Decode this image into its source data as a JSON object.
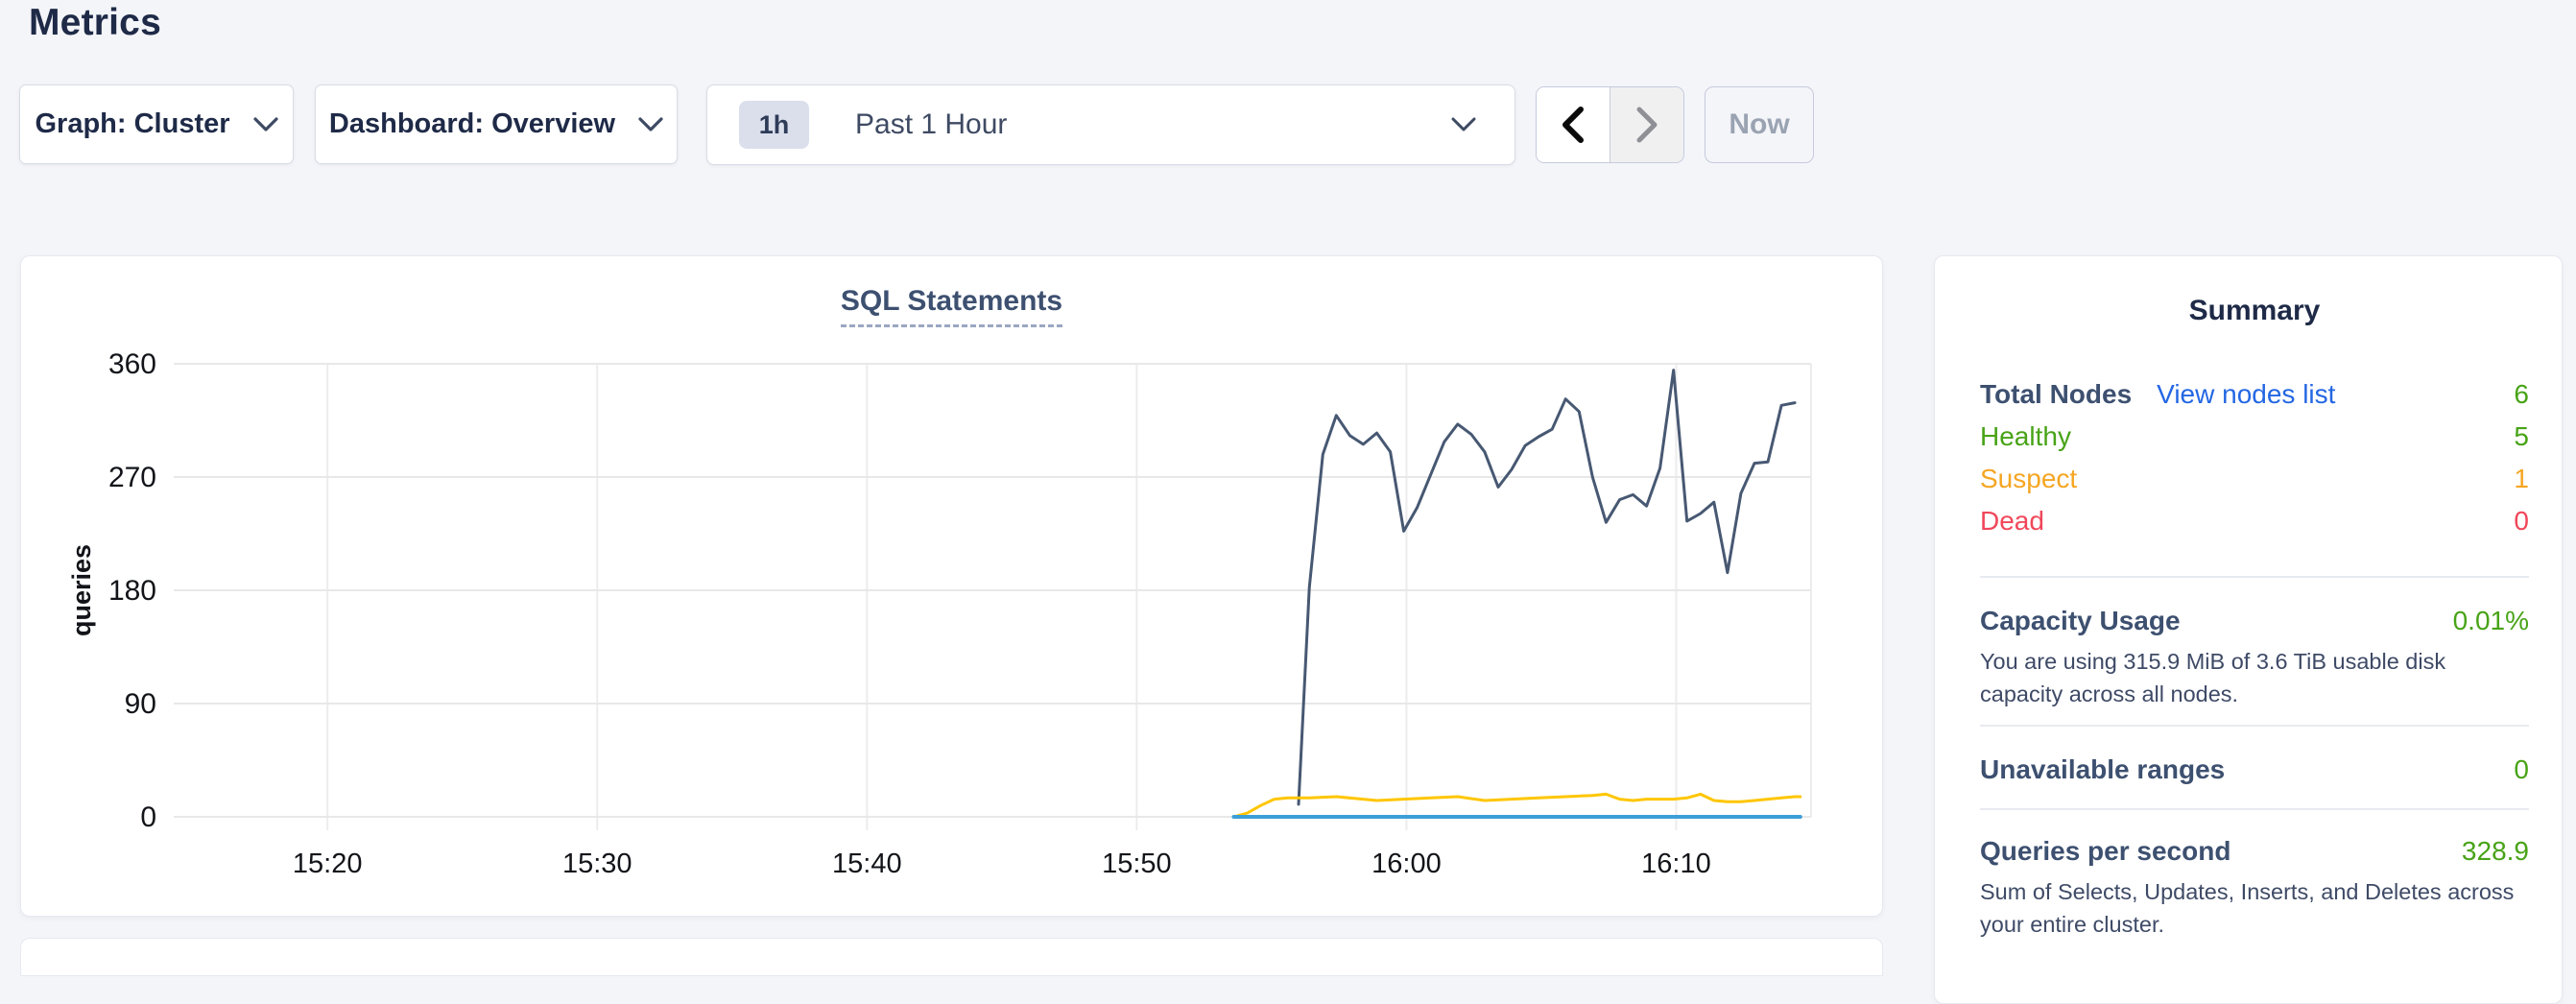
{
  "header": {
    "title": "Metrics"
  },
  "toolbar": {
    "graph_dropdown": {
      "label": "Graph: Cluster"
    },
    "dashboard_dropdown": {
      "label": "Dashboard: Overview"
    },
    "time_picker": {
      "badge": "1h",
      "label": "Past 1 Hour"
    },
    "prev_icon": "chevron-left",
    "next_icon": "chevron-right",
    "now_label": "Now"
  },
  "summary": {
    "title": "Summary",
    "total_nodes_label": "Total Nodes",
    "view_nodes_link": "View nodes list",
    "total_nodes_value": "6",
    "healthy_label": "Healthy",
    "healthy_value": "5",
    "suspect_label": "Suspect",
    "suspect_value": "1",
    "dead_label": "Dead",
    "dead_value": "0",
    "capacity_label": "Capacity Usage",
    "capacity_value": "0.01%",
    "capacity_desc": "You are using 315.9 MiB of 3.6 TiB usable disk capacity across all nodes.",
    "unavailable_label": "Unavailable ranges",
    "unavailable_value": "0",
    "qps_label": "Queries per second",
    "qps_value": "328.9",
    "qps_desc": "Sum of Selects, Updates, Inserts, and Deletes across your entire cluster."
  },
  "colors": {
    "page_bg": "#f4f5f9",
    "accent_green": "#48a317",
    "accent_orange": "#f5a623",
    "accent_red": "#f0475a",
    "link_blue": "#2467e3",
    "series_dark": "#475872",
    "series_yellow": "#ffc600",
    "series_blue": "#3d9fd8",
    "grid": "#e8e8e8"
  },
  "chart_data": {
    "type": "line",
    "title": "SQL Statements",
    "xlabel": "",
    "ylabel": "queries",
    "x_unit": "minutes-since-15:00",
    "xlim": [
      14.3,
      75.0
    ],
    "ylim": [
      0,
      360
    ],
    "yticks": [
      0,
      90,
      180,
      270,
      360
    ],
    "xticks": [
      {
        "t": 20,
        "label": "15:20"
      },
      {
        "t": 30,
        "label": "15:30"
      },
      {
        "t": 40,
        "label": "15:40"
      },
      {
        "t": 50,
        "label": "15:50"
      },
      {
        "t": 60,
        "label": "16:00"
      },
      {
        "t": 70,
        "label": "16:10"
      }
    ],
    "grid": true,
    "legend": "none",
    "series": [
      {
        "name": "statements-dark",
        "color": "#475872",
        "width": 3,
        "points": [
          [
            56.0,
            10
          ],
          [
            56.4,
            182
          ],
          [
            56.9,
            288
          ],
          [
            57.4,
            319
          ],
          [
            57.9,
            303
          ],
          [
            58.4,
            296
          ],
          [
            58.9,
            305
          ],
          [
            59.4,
            290
          ],
          [
            59.9,
            227
          ],
          [
            60.4,
            246
          ],
          [
            60.9,
            272
          ],
          [
            61.4,
            298
          ],
          [
            61.9,
            312
          ],
          [
            62.4,
            304
          ],
          [
            62.9,
            290
          ],
          [
            63.4,
            262
          ],
          [
            63.9,
            276
          ],
          [
            64.4,
            295
          ],
          [
            64.9,
            302
          ],
          [
            65.4,
            308
          ],
          [
            65.9,
            332
          ],
          [
            66.4,
            322
          ],
          [
            66.9,
            270
          ],
          [
            67.4,
            234
          ],
          [
            67.9,
            252
          ],
          [
            68.4,
            256
          ],
          [
            68.9,
            247
          ],
          [
            69.4,
            277
          ],
          [
            69.9,
            355
          ],
          [
            70.4,
            235
          ],
          [
            70.9,
            241
          ],
          [
            71.4,
            250
          ],
          [
            71.9,
            194
          ],
          [
            72.4,
            257
          ],
          [
            72.9,
            281
          ],
          [
            73.4,
            282
          ],
          [
            73.9,
            327
          ],
          [
            74.4,
            329
          ]
        ]
      },
      {
        "name": "statements-yellow",
        "color": "#ffc600",
        "width": 3,
        "points": [
          [
            53.6,
            0
          ],
          [
            54.1,
            3
          ],
          [
            54.6,
            9
          ],
          [
            55.1,
            14
          ],
          [
            55.6,
            15
          ],
          [
            56.4,
            15
          ],
          [
            57.4,
            16
          ],
          [
            58.4,
            14
          ],
          [
            58.9,
            13
          ],
          [
            59.9,
            14
          ],
          [
            60.9,
            15
          ],
          [
            61.9,
            16
          ],
          [
            62.9,
            13
          ],
          [
            63.9,
            14
          ],
          [
            64.9,
            15
          ],
          [
            65.9,
            16
          ],
          [
            66.9,
            17
          ],
          [
            67.4,
            18
          ],
          [
            67.9,
            14
          ],
          [
            68.4,
            13
          ],
          [
            68.9,
            14
          ],
          [
            69.9,
            14
          ],
          [
            70.4,
            15
          ],
          [
            70.9,
            18
          ],
          [
            71.4,
            13
          ],
          [
            71.9,
            12
          ],
          [
            72.4,
            12
          ],
          [
            72.9,
            13
          ],
          [
            73.9,
            15
          ],
          [
            74.4,
            16
          ],
          [
            74.6,
            16
          ]
        ]
      },
      {
        "name": "statements-blue",
        "color": "#3d9fd8",
        "width": 4,
        "points": [
          [
            53.6,
            0
          ],
          [
            74.6,
            0
          ]
        ]
      }
    ]
  }
}
